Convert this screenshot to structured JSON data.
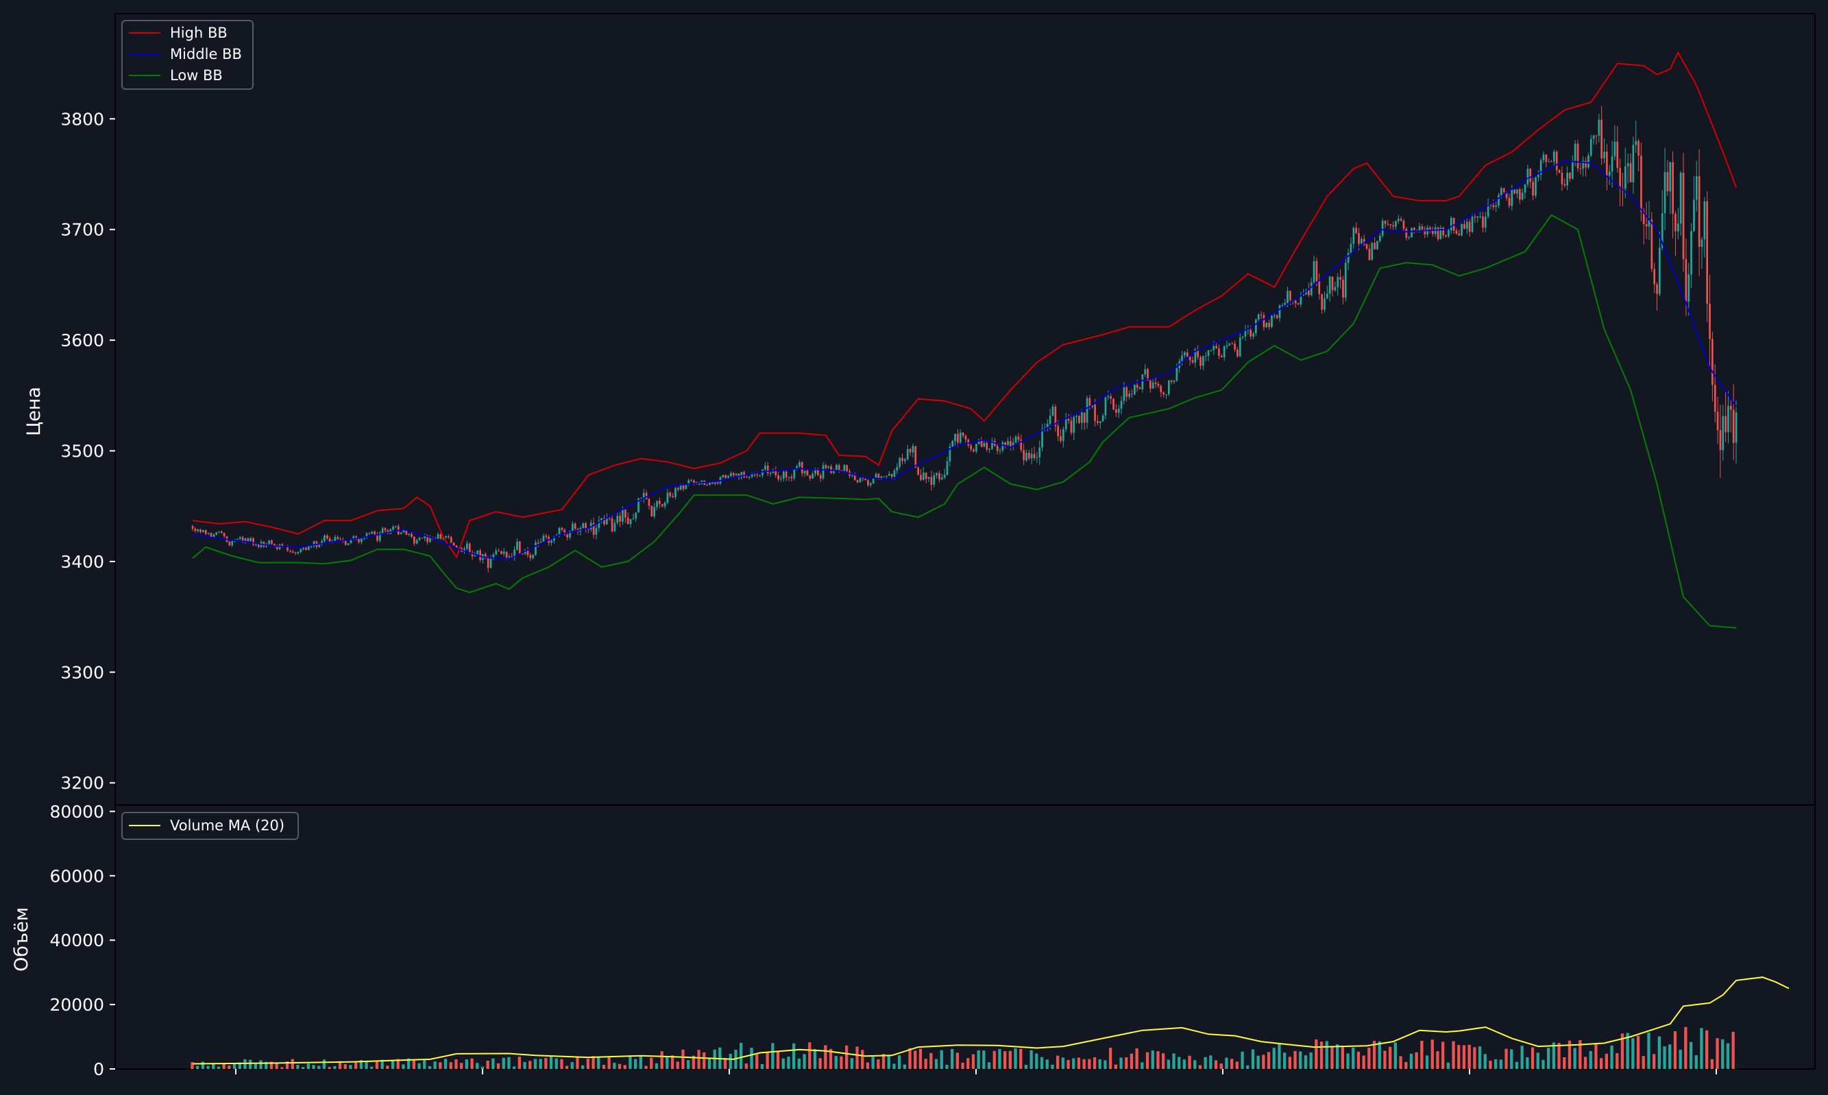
{
  "chart_data": [
    {
      "panel": "price",
      "type": "candlestick",
      "title": "",
      "ylabel": "Цена",
      "ylim": [
        3180,
        3895
      ],
      "yticks": [
        3200,
        3300,
        3400,
        3500,
        3600,
        3700,
        3800
      ],
      "grid": false,
      "legend": "top-left",
      "series": [
        {
          "name": "High BB",
          "color": "#d40000",
          "points": [
            [
              0,
              3437
            ],
            [
              10,
              3434
            ],
            [
              20,
              3436
            ],
            [
              30,
              3431
            ],
            [
              40,
              3425
            ],
            [
              50,
              3437
            ],
            [
              60,
              3437
            ],
            [
              70,
              3446
            ],
            [
              80,
              3448
            ],
            [
              85,
              3458
            ],
            [
              90,
              3450
            ],
            [
              95,
              3422
            ],
            [
              100,
              3404
            ],
            [
              105,
              3437
            ],
            [
              115,
              3445
            ],
            [
              125,
              3440
            ],
            [
              140,
              3447
            ],
            [
              150,
              3478
            ],
            [
              160,
              3487
            ],
            [
              170,
              3493
            ],
            [
              180,
              3490
            ],
            [
              190,
              3484
            ],
            [
              200,
              3489
            ],
            [
              210,
              3500
            ],
            [
              215,
              3516
            ],
            [
              230,
              3516
            ],
            [
              240,
              3514
            ],
            [
              245,
              3496
            ],
            [
              255,
              3495
            ],
            [
              260,
              3487
            ],
            [
              265,
              3518
            ],
            [
              275,
              3547
            ],
            [
              285,
              3545
            ],
            [
              295,
              3538
            ],
            [
              300,
              3527
            ],
            [
              310,
              3555
            ],
            [
              320,
              3580
            ],
            [
              330,
              3596
            ],
            [
              345,
              3605
            ],
            [
              355,
              3612
            ],
            [
              370,
              3612
            ],
            [
              380,
              3627
            ],
            [
              390,
              3640
            ],
            [
              400,
              3660
            ],
            [
              410,
              3648
            ],
            [
              420,
              3690
            ],
            [
              430,
              3730
            ],
            [
              440,
              3755
            ],
            [
              445,
              3760
            ],
            [
              455,
              3730
            ],
            [
              465,
              3726
            ],
            [
              475,
              3726
            ],
            [
              480,
              3730
            ],
            [
              490,
              3758
            ],
            [
              500,
              3770
            ],
            [
              510,
              3790
            ],
            [
              520,
              3808
            ],
            [
              530,
              3815
            ],
            [
              540,
              3850
            ],
            [
              550,
              3848
            ],
            [
              555,
              3840
            ],
            [
              560,
              3845
            ],
            [
              563,
              3860
            ],
            [
              570,
              3830
            ],
            [
              580,
              3770
            ],
            [
              585,
              3738
            ]
          ]
        },
        {
          "name": "Middle BB",
          "color": "#0000c8",
          "points": [
            [
              0,
              3424
            ],
            [
              20,
              3418
            ],
            [
              30,
              3414
            ],
            [
              40,
              3413
            ],
            [
              60,
              3420
            ],
            [
              70,
              3424
            ],
            [
              80,
              3429
            ],
            [
              90,
              3422
            ],
            [
              100,
              3412
            ],
            [
              110,
              3404
            ],
            [
              120,
              3402
            ],
            [
              130,
              3414
            ],
            [
              140,
              3425
            ],
            [
              150,
              3430
            ],
            [
              165,
              3450
            ],
            [
              180,
              3468
            ],
            [
              200,
              3473
            ],
            [
              215,
              3481
            ],
            [
              230,
              3484
            ],
            [
              245,
              3482
            ],
            [
              255,
              3476
            ],
            [
              265,
              3474
            ],
            [
              275,
              3488
            ],
            [
              290,
              3505
            ],
            [
              300,
              3510
            ],
            [
              310,
              3503
            ],
            [
              320,
              3516
            ],
            [
              340,
              3540
            ],
            [
              350,
              3557
            ],
            [
              370,
              3570
            ],
            [
              380,
              3590
            ],
            [
              400,
              3610
            ],
            [
              420,
              3640
            ],
            [
              440,
              3680
            ],
            [
              450,
              3700
            ],
            [
              460,
              3698
            ],
            [
              475,
              3700
            ],
            [
              490,
              3720
            ],
            [
              505,
              3745
            ],
            [
              520,
              3762
            ],
            [
              530,
              3760
            ],
            [
              545,
              3730
            ],
            [
              555,
              3700
            ],
            [
              565,
              3640
            ],
            [
              575,
              3575
            ],
            [
              585,
              3540
            ]
          ]
        },
        {
          "name": "Low BB",
          "color": "#008000",
          "points": [
            [
              0,
              3403
            ],
            [
              5,
              3413
            ],
            [
              15,
              3405
            ],
            [
              25,
              3399
            ],
            [
              40,
              3399
            ],
            [
              50,
              3398
            ],
            [
              60,
              3401
            ],
            [
              70,
              3411
            ],
            [
              80,
              3411
            ],
            [
              90,
              3405
            ],
            [
              95,
              3390
            ],
            [
              100,
              3376
            ],
            [
              105,
              3372
            ],
            [
              115,
              3380
            ],
            [
              120,
              3375
            ],
            [
              125,
              3385
            ],
            [
              135,
              3395
            ],
            [
              145,
              3410
            ],
            [
              155,
              3395
            ],
            [
              165,
              3400
            ],
            [
              175,
              3418
            ],
            [
              185,
              3445
            ],
            [
              190,
              3460
            ],
            [
              210,
              3460
            ],
            [
              220,
              3452
            ],
            [
              230,
              3458
            ],
            [
              245,
              3457
            ],
            [
              255,
              3456
            ],
            [
              260,
              3457
            ],
            [
              265,
              3445
            ],
            [
              275,
              3440
            ],
            [
              285,
              3452
            ],
            [
              290,
              3470
            ],
            [
              300,
              3485
            ],
            [
              310,
              3470
            ],
            [
              320,
              3465
            ],
            [
              330,
              3472
            ],
            [
              340,
              3490
            ],
            [
              345,
              3508
            ],
            [
              355,
              3530
            ],
            [
              370,
              3538
            ],
            [
              380,
              3548
            ],
            [
              390,
              3555
            ],
            [
              400,
              3580
            ],
            [
              410,
              3595
            ],
            [
              420,
              3582
            ],
            [
              430,
              3590
            ],
            [
              440,
              3615
            ],
            [
              450,
              3665
            ],
            [
              460,
              3670
            ],
            [
              470,
              3668
            ],
            [
              480,
              3658
            ],
            [
              490,
              3665
            ],
            [
              505,
              3680
            ],
            [
              515,
              3713
            ],
            [
              525,
              3700
            ],
            [
              535,
              3610
            ],
            [
              545,
              3555
            ],
            [
              555,
              3470
            ],
            [
              565,
              3368
            ],
            [
              575,
              3342
            ],
            [
              585,
              3340
            ]
          ]
        }
      ],
      "candles_summary": {
        "bullish_color": "#26a69a",
        "bearish_color": "#ef5350"
      }
    },
    {
      "panel": "volume",
      "type": "bar",
      "title": "",
      "ylabel": "Объём",
      "ylim": [
        0,
        82000
      ],
      "yticks": [
        "0",
        "20000",
        "40000",
        "60000",
        "80000"
      ],
      "grid": false,
      "legend": "top-left",
      "series": [
        {
          "name": "Volume MA (20)",
          "color": "#ffff33",
          "points": [
            [
              0,
              1600
            ],
            [
              30,
              1800
            ],
            [
              60,
              2200
            ],
            [
              75,
              2600
            ],
            [
              90,
              3000
            ],
            [
              100,
              4700
            ],
            [
              120,
              4800
            ],
            [
              130,
              4200
            ],
            [
              150,
              3600
            ],
            [
              170,
              4100
            ],
            [
              185,
              3700
            ],
            [
              205,
              3000
            ],
            [
              215,
              5000
            ],
            [
              230,
              6000
            ],
            [
              240,
              5600
            ],
            [
              255,
              4000
            ],
            [
              265,
              4200
            ],
            [
              275,
              6800
            ],
            [
              290,
              7400
            ],
            [
              305,
              7300
            ],
            [
              320,
              6500
            ],
            [
              330,
              7000
            ],
            [
              345,
              9500
            ],
            [
              360,
              12000
            ],
            [
              375,
              12800
            ],
            [
              385,
              10800
            ],
            [
              395,
              10300
            ],
            [
              405,
              8500
            ],
            [
              415,
              7600
            ],
            [
              425,
              6800
            ],
            [
              445,
              7200
            ],
            [
              455,
              8500
            ],
            [
              465,
              12000
            ],
            [
              475,
              11500
            ],
            [
              480,
              11800
            ],
            [
              490,
              13000
            ],
            [
              500,
              9500
            ],
            [
              510,
              7000
            ],
            [
              525,
              7500
            ],
            [
              535,
              8000
            ],
            [
              545,
              10000
            ],
            [
              560,
              14000
            ],
            [
              565,
              19500
            ],
            [
              575,
              20500
            ],
            [
              580,
              23000
            ],
            [
              585,
              27500
            ],
            [
              595,
              28500
            ],
            [
              600,
              27000
            ],
            [
              605,
              25000
            ]
          ]
        }
      ],
      "bars_summary": {
        "bullish_color": "#26a69a",
        "bearish_color": "#ef5350"
      }
    }
  ]
}
